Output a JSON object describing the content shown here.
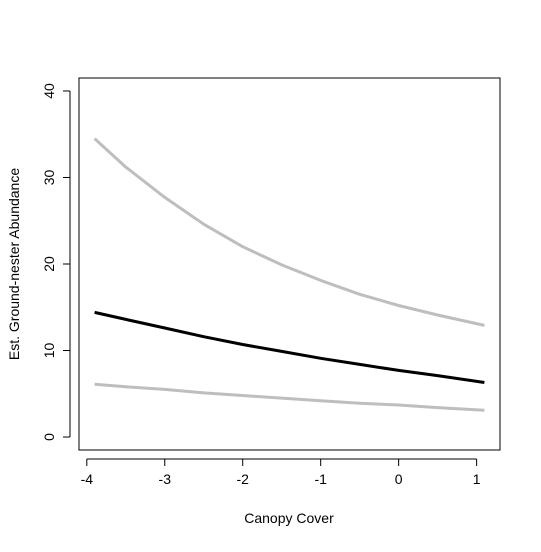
{
  "chart_data": {
    "type": "line",
    "title": "",
    "xlabel": "Canopy Cover",
    "ylabel": "Est. Ground-nester Abundance",
    "xlim": [
      -4.1,
      1.3
    ],
    "ylim": [
      -1.5,
      41.5
    ],
    "x_ticks": [
      -4,
      -3,
      -2,
      -1,
      0,
      1
    ],
    "x_tick_labels": [
      "-4",
      "-3",
      "-2",
      "-1",
      "0",
      "1"
    ],
    "y_ticks": [
      0,
      10,
      20,
      30,
      40
    ],
    "y_tick_labels": [
      "0",
      "10",
      "20",
      "30",
      "40"
    ],
    "grid": false,
    "legend": "none",
    "series": [
      {
        "role": "upper-bound",
        "color": "#bebebe",
        "x": [
          -3.9,
          -3.5,
          -3.0,
          -2.5,
          -2.0,
          -1.5,
          -1.0,
          -0.5,
          0.0,
          0.5,
          1.1
        ],
        "y": [
          34.5,
          31.2,
          27.7,
          24.6,
          22.0,
          19.9,
          18.1,
          16.5,
          15.2,
          14.1,
          12.9
        ]
      },
      {
        "role": "estimate",
        "color": "#000000",
        "x": [
          -3.9,
          -3.5,
          -3.0,
          -2.5,
          -2.0,
          -1.5,
          -1.0,
          -0.5,
          0.0,
          0.5,
          1.1
        ],
        "y": [
          14.4,
          13.6,
          12.6,
          11.6,
          10.7,
          9.9,
          9.1,
          8.4,
          7.7,
          7.1,
          6.3
        ]
      },
      {
        "role": "lower-bound",
        "color": "#bebebe",
        "x": [
          -3.9,
          -3.5,
          -3.0,
          -2.5,
          -2.0,
          -1.5,
          -1.0,
          -0.5,
          0.0,
          0.5,
          1.1
        ],
        "y": [
          6.1,
          5.8,
          5.5,
          5.1,
          4.8,
          4.5,
          4.2,
          3.9,
          3.7,
          3.4,
          3.1
        ]
      }
    ]
  }
}
